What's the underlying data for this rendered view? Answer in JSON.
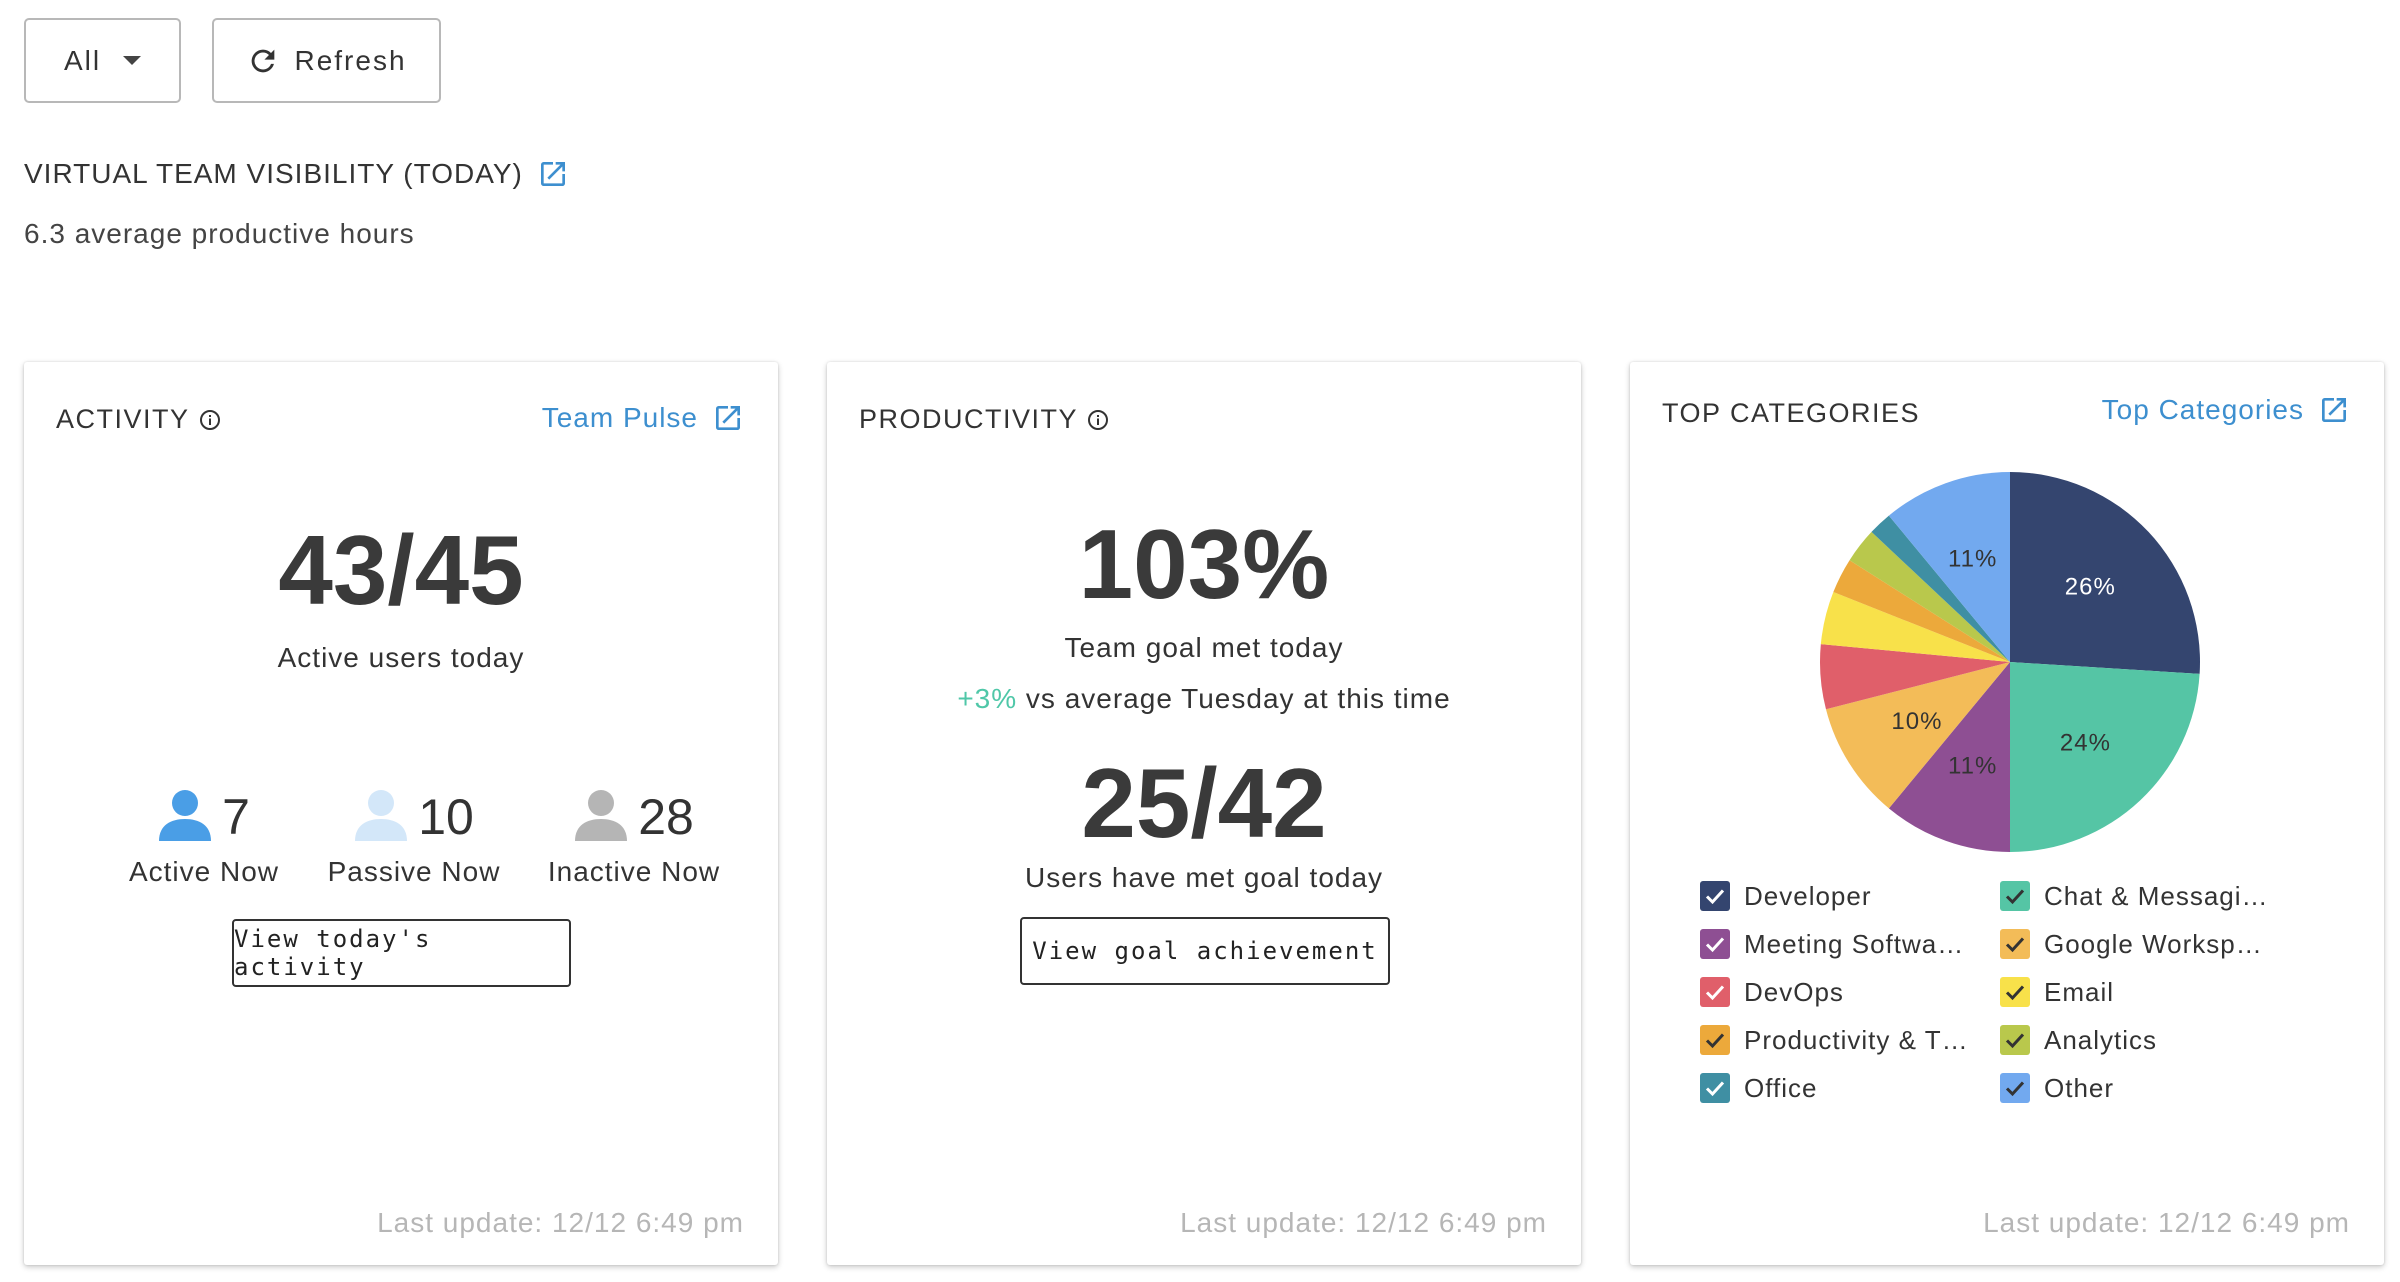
{
  "toolbar": {
    "filter_label": "All",
    "refresh_label": "Refresh"
  },
  "header": {
    "title": "VIRTUAL TEAM VISIBILITY (TODAY)",
    "subtitle": "6.3 average productive hours"
  },
  "activity": {
    "title": "ACTIVITY",
    "link_label": "Team Pulse",
    "big_value": "43/45",
    "big_caption": "Active users today",
    "statuses": [
      {
        "count": "7",
        "label": "Active Now",
        "color": "#4a9ee6"
      },
      {
        "count": "10",
        "label": "Passive Now",
        "color": "#d3e7f9"
      },
      {
        "count": "28",
        "label": "Inactive Now",
        "color": "#b5b5b5"
      }
    ],
    "button_label": "View today's activity",
    "footer": "Last update: 12/12 6:49 pm"
  },
  "productivity": {
    "title": "PRODUCTIVITY",
    "big_value": "103%",
    "big_caption": "Team goal met today",
    "delta_value": "+3%",
    "delta_text": " vs average Tuesday at this time",
    "users_value": "25/42",
    "users_caption": "Users have met goal today",
    "button_label": "View goal achievement",
    "footer": "Last update: 12/12 6:49 pm"
  },
  "categories": {
    "title": "TOP CATEGORIES",
    "link_label": "Top Categories",
    "footer": "Last update: 12/12 6:49 pm",
    "chart_data": {
      "type": "pie",
      "categories": [
        "Developer",
        "Chat & Messagi…",
        "Meeting Softwa…",
        "Google Worksp…",
        "DevOps",
        "Email",
        "Productivity & T…",
        "Analytics",
        "Office",
        "Other"
      ],
      "values": [
        26,
        24,
        11,
        10,
        5.5,
        4.5,
        3,
        3,
        2,
        11
      ],
      "labels_shown": [
        "26%",
        "24%",
        "11%",
        "10%",
        "",
        "",
        "",
        "",
        "",
        "11%"
      ],
      "colors": [
        "#34456f",
        "#55c5a5",
        "#8e4f93",
        "#f3bc58",
        "#e05f6a",
        "#f8e14a",
        "#eca93b",
        "#b9c84c",
        "#3f8fa3",
        "#72a9ef"
      ],
      "legend_order": [
        0,
        1,
        2,
        3,
        4,
        5,
        6,
        7,
        8,
        9
      ],
      "legend_placement": "bottom"
    }
  }
}
